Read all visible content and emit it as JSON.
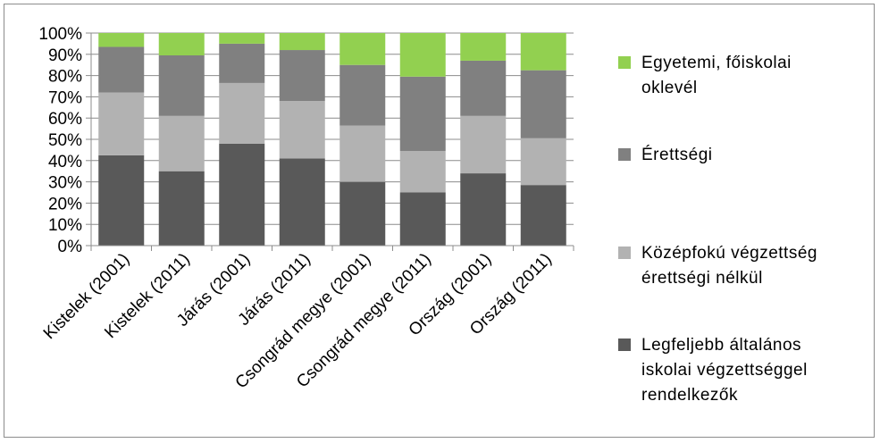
{
  "chart_data": {
    "type": "bar",
    "stacked": true,
    "percent_stacked": true,
    "categories": [
      "Kistelek (2001)",
      "Kistelek (2011)",
      "Járás (2001)",
      "Járás (2011)",
      "Csongrád megye (2001)",
      "Csongrád megye (2011)",
      "Ország (2001)",
      "Ország (2011)"
    ],
    "series": [
      {
        "name": "Legfeljebb általános iskolai végzettséggel rendelkezők",
        "legend_lines": [
          "Legfeljebb általános",
          "iskolai végzettséggel",
          "rendelkezők"
        ],
        "color": "#595959",
        "values": [
          42.5,
          35,
          48,
          41,
          30,
          25,
          34,
          28.5
        ]
      },
      {
        "name": "Középfokú végzettség érettségi nélkül",
        "legend_lines": [
          "Középfokú végzettség",
          "érettségi nélkül"
        ],
        "color": "#b2b2b2",
        "values": [
          29.5,
          26,
          28.5,
          27,
          26.5,
          19.5,
          27,
          22
        ]
      },
      {
        "name": "Érettségi",
        "legend_lines": [
          "Érettségi"
        ],
        "color": "#808080",
        "values": [
          21.5,
          28.5,
          18.5,
          24,
          28.5,
          35,
          26,
          32
        ]
      },
      {
        "name": "Egyetemi, főiskolai oklevél",
        "legend_lines": [
          "Egyetemi, főiskolai",
          "oklevél"
        ],
        "color": "#92d050",
        "values": [
          6.5,
          10.5,
          5,
          8,
          15,
          20.5,
          13,
          17.5
        ]
      }
    ],
    "y_ticks": [
      "0%",
      "10%",
      "20%",
      "30%",
      "40%",
      "50%",
      "60%",
      "70%",
      "80%",
      "90%",
      "100%"
    ],
    "ylim": [
      0,
      100
    ],
    "grid": true,
    "legend_position": "right",
    "title": "",
    "xlabel": "",
    "ylabel": ""
  }
}
